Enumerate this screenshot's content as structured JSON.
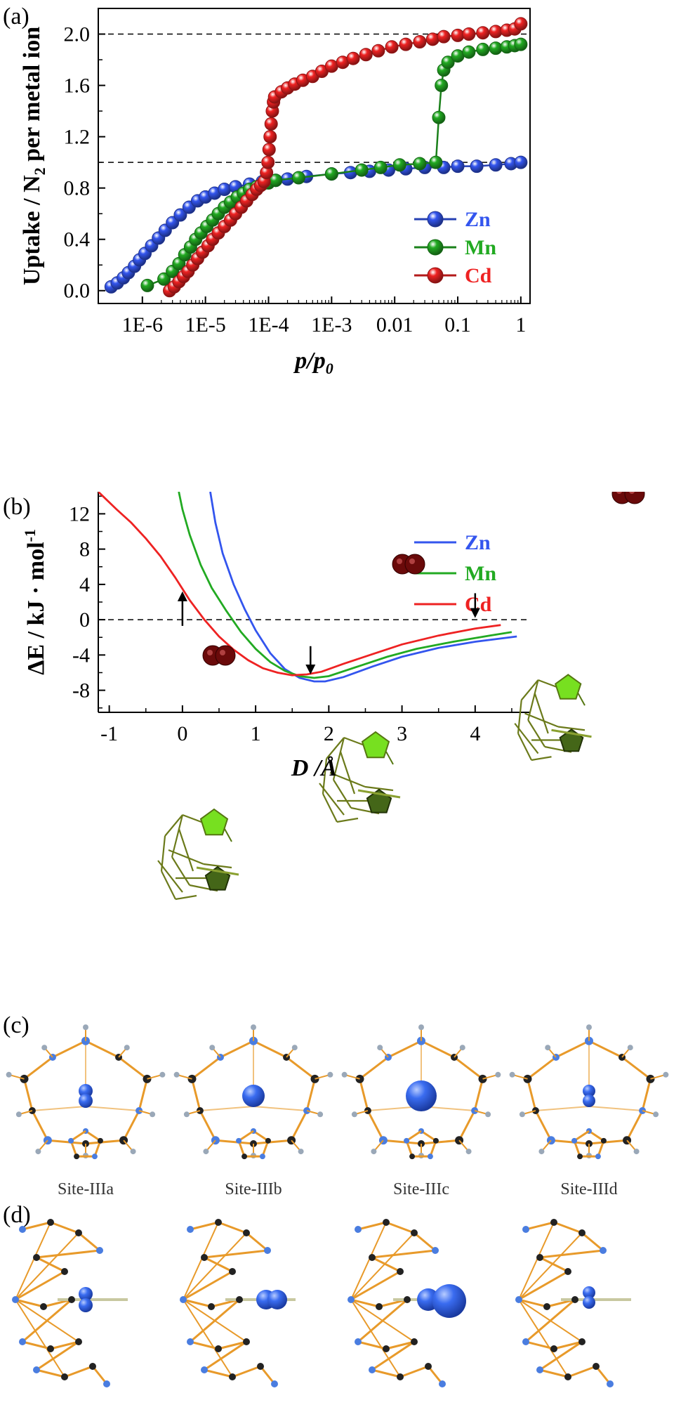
{
  "chart_data": [
    {
      "panel_label": "(a)",
      "type": "scatter",
      "xlabel": "p/p0",
      "ylabel": "Uptake / N2 per metal ion",
      "x_scale": "log",
      "xlim": [
        2e-07,
        1.4
      ],
      "ylim": [
        -0.1,
        2.2
      ],
      "xticks": [
        1e-06,
        1e-05,
        0.0001,
        0.001,
        0.01,
        0.1,
        1
      ],
      "xtick_labels": [
        "1E-6",
        "1E-5",
        "1E-4",
        "1E-3",
        "0.01",
        "0.1",
        "1"
      ],
      "yticks": [
        0.0,
        0.4,
        0.8,
        1.2,
        1.6,
        2.0
      ],
      "ytick_labels": [
        "0.0",
        "0.4",
        "0.8",
        "1.2",
        "1.6",
        "2.0"
      ],
      "reference_lines": [
        1.0,
        2.0
      ],
      "legend_position": "bottom-right",
      "series": [
        {
          "name": "Zn",
          "color": "#3355ee",
          "x": [
            3.2e-07,
            4e-07,
            5e-07,
            6e-07,
            7.5e-07,
            9e-07,
            1.1e-06,
            1.4e-06,
            1.8e-06,
            2.3e-06,
            3e-06,
            4e-06,
            5.5e-06,
            7.5e-06,
            1e-05,
            1.4e-05,
            2e-05,
            3e-05,
            5e-05,
            8e-05,
            0.00013,
            0.0002,
            0.0004,
            0.001,
            0.002,
            0.004,
            0.008,
            0.015,
            0.03,
            0.06,
            0.1,
            0.2,
            0.4,
            0.7,
            1.0
          ],
          "y": [
            0.03,
            0.06,
            0.1,
            0.14,
            0.19,
            0.24,
            0.29,
            0.35,
            0.41,
            0.47,
            0.53,
            0.59,
            0.65,
            0.7,
            0.73,
            0.76,
            0.79,
            0.81,
            0.83,
            0.85,
            0.86,
            0.87,
            0.89,
            0.91,
            0.92,
            0.93,
            0.94,
            0.95,
            0.96,
            0.96,
            0.97,
            0.97,
            0.98,
            0.99,
            1.0
          ]
        },
        {
          "name": "Mn",
          "color": "#22aa22",
          "x": [
            1.2e-06,
            2.2e-06,
            3e-06,
            3.8e-06,
            4.7e-06,
            5.8e-06,
            7e-06,
            8.5e-06,
            1.05e-05,
            1.3e-05,
            1.6e-05,
            2e-05,
            2.5e-05,
            3.2e-05,
            4e-05,
            5e-05,
            6.5e-05,
            8e-05,
            0.0001,
            0.00013,
            0.0003,
            0.001,
            0.003,
            0.006,
            0.012,
            0.025,
            0.045,
            0.05,
            0.055,
            0.06,
            0.07,
            0.1,
            0.15,
            0.25,
            0.4,
            0.6,
            0.8,
            1.0
          ],
          "y": [
            0.04,
            0.09,
            0.15,
            0.21,
            0.28,
            0.34,
            0.4,
            0.45,
            0.5,
            0.55,
            0.6,
            0.65,
            0.69,
            0.73,
            0.76,
            0.79,
            0.81,
            0.83,
            0.84,
            0.86,
            0.88,
            0.91,
            0.94,
            0.96,
            0.98,
            0.99,
            1.0,
            1.35,
            1.6,
            1.72,
            1.78,
            1.83,
            1.86,
            1.88,
            1.89,
            1.9,
            1.91,
            1.92
          ]
        },
        {
          "name": "Cd",
          "color": "#ee2222",
          "x": [
            2.7e-06,
            3.2e-06,
            3.8e-06,
            4.5e-06,
            5.3e-06,
            6.3e-06,
            7.5e-06,
            9e-06,
            1.1e-05,
            1.3e-05,
            1.6e-05,
            2e-05,
            2.5e-05,
            3e-05,
            3.7e-05,
            4.5e-05,
            5.5e-05,
            6.5e-05,
            7.5e-05,
            8.5e-05,
            9.3e-05,
            9.8e-05,
            0.000102,
            0.000106,
            0.00011,
            0.000115,
            0.00012,
            0.000125,
            0.00016,
            0.0002,
            0.00026,
            0.00035,
            0.0005,
            0.0007,
            0.001,
            0.0015,
            0.0022,
            0.0035,
            0.0055,
            0.009,
            0.015,
            0.025,
            0.04,
            0.06,
            0.1,
            0.15,
            0.25,
            0.4,
            0.6,
            0.8,
            1.0
          ],
          "y": [
            0.0,
            0.03,
            0.07,
            0.11,
            0.15,
            0.2,
            0.25,
            0.3,
            0.35,
            0.4,
            0.45,
            0.5,
            0.55,
            0.6,
            0.65,
            0.7,
            0.75,
            0.79,
            0.82,
            0.85,
            0.92,
            1.0,
            1.1,
            1.2,
            1.3,
            1.4,
            1.47,
            1.51,
            1.55,
            1.58,
            1.61,
            1.64,
            1.67,
            1.71,
            1.75,
            1.78,
            1.81,
            1.84,
            1.87,
            1.9,
            1.92,
            1.94,
            1.96,
            1.98,
            1.99,
            2.0,
            2.01,
            2.02,
            2.03,
            2.04,
            2.08
          ]
        }
      ]
    },
    {
      "panel_label": "(b)",
      "type": "line",
      "xlabel": "D /Å",
      "ylabel": "ΔE / kJ · mol-1",
      "xlim": [
        -1.15,
        4.75
      ],
      "ylim": [
        -10.5,
        14.5
      ],
      "xticks": [
        -1,
        0,
        1,
        2,
        3,
        4
      ],
      "xtick_labels": [
        "-1",
        "0",
        "1",
        "2",
        "3",
        "4"
      ],
      "yticks": [
        -8,
        -4,
        0,
        4,
        8,
        12
      ],
      "ytick_labels": [
        "-8",
        "-4",
        "0",
        "4",
        "8",
        "12"
      ],
      "reference_lines": [
        0
      ],
      "legend_position": "top-right",
      "series": [
        {
          "name": "Zn",
          "color": "#3355ee",
          "x": [
            0.38,
            0.45,
            0.55,
            0.7,
            0.85,
            1.0,
            1.2,
            1.4,
            1.6,
            1.8,
            1.95,
            2.2,
            2.6,
            3.0,
            3.5,
            4.0,
            4.57
          ],
          "y": [
            14.5,
            11.0,
            7.5,
            4.0,
            1.2,
            -1.2,
            -3.8,
            -5.6,
            -6.6,
            -7.0,
            -7.0,
            -6.5,
            -5.3,
            -4.2,
            -3.2,
            -2.5,
            -1.9
          ]
        },
        {
          "name": "Mn",
          "color": "#22aa22",
          "x": [
            -0.05,
            0.0,
            0.1,
            0.25,
            0.4,
            0.6,
            0.8,
            1.0,
            1.2,
            1.4,
            1.6,
            1.8,
            2.0,
            2.4,
            2.8,
            3.2,
            3.7,
            4.2,
            4.5
          ],
          "y": [
            14.5,
            12.5,
            9.6,
            6.2,
            3.6,
            1.0,
            -1.4,
            -3.3,
            -4.8,
            -5.8,
            -6.4,
            -6.6,
            -6.4,
            -5.3,
            -4.2,
            -3.3,
            -2.5,
            -1.8,
            -1.4
          ]
        },
        {
          "name": "Cd",
          "color": "#ee2222",
          "x": [
            -1.15,
            -0.9,
            -0.7,
            -0.5,
            -0.3,
            -0.1,
            0.1,
            0.3,
            0.5,
            0.7,
            0.9,
            1.1,
            1.3,
            1.5,
            1.7,
            1.9,
            2.2,
            2.6,
            3.0,
            3.5,
            4.0,
            4.35
          ],
          "y": [
            14.5,
            12.5,
            11.0,
            9.2,
            7.2,
            4.8,
            2.2,
            0.0,
            -1.9,
            -3.4,
            -4.6,
            -5.5,
            -6.0,
            -6.3,
            -6.2,
            -5.9,
            -5.0,
            -3.9,
            -2.8,
            -1.8,
            -1.0,
            -0.6
          ]
        }
      ],
      "arrows": [
        {
          "x": 0.0,
          "from_y": -0.7,
          "to_y": 3.2
        },
        {
          "x": 1.75,
          "from_y": -3.0,
          "to_y": -6.2
        },
        {
          "x": 4.0,
          "from_y": 3.0,
          "to_y": 0.2
        }
      ]
    }
  ],
  "panel_c": {
    "label": "(c)",
    "sites": [
      "Site-IIIa",
      "Site-IIIb",
      "Site-IIIc",
      "Site-IIId"
    ]
  },
  "panel_d": {
    "label": "(d)"
  },
  "colors": {
    "framework_bond": "#e89a2a",
    "nitrogen_atom": "#4a7de0",
    "carbon_atom": "#222222",
    "hydrogen_atom": "#9aa8b8",
    "guest_sphere": "#3a6cf0",
    "molecule_green": "#77e020",
    "molecule_dark_green": "#446618",
    "n2_dark_red": "#6a0a0a"
  }
}
